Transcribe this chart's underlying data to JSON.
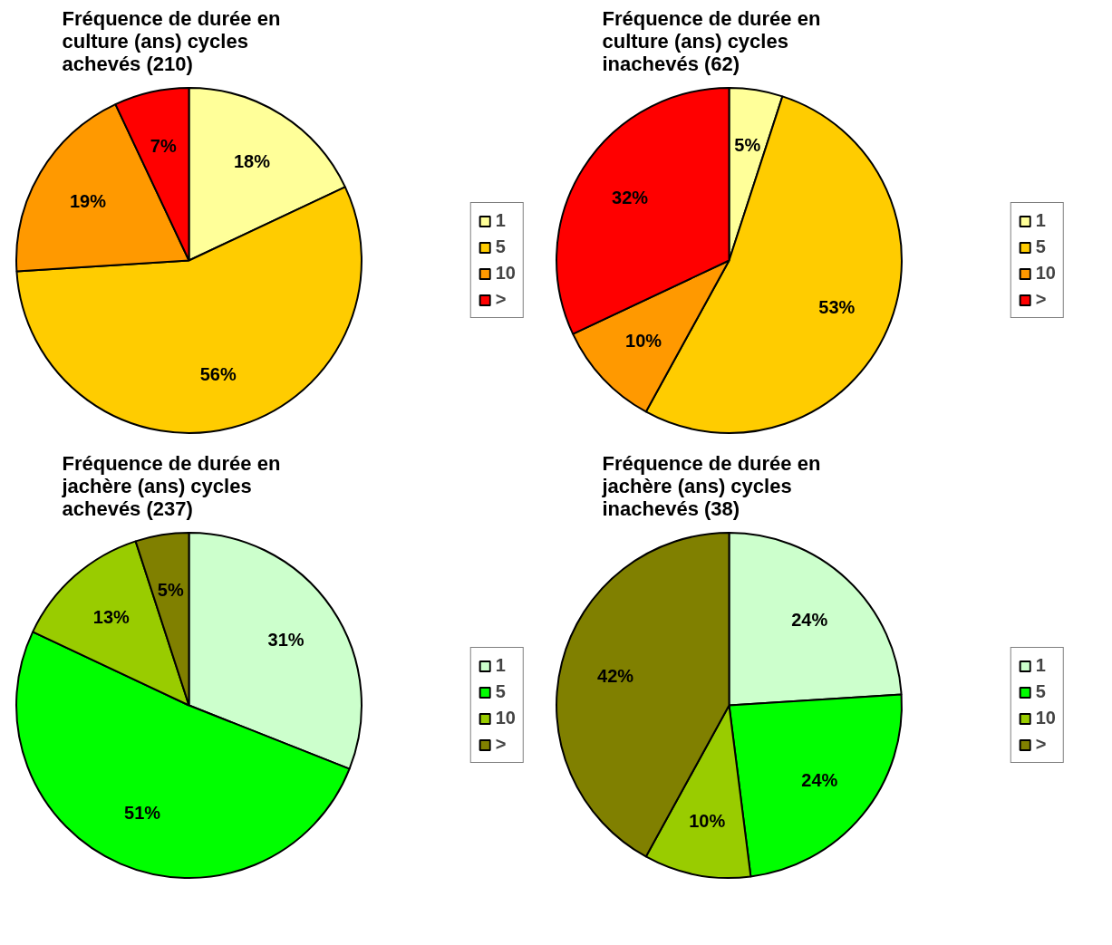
{
  "chart_data": [
    {
      "type": "pie",
      "title": "Fréquence de durée en culture (ans) cycles achevés (210)",
      "categories": [
        "1",
        "5",
        "10",
        ">"
      ],
      "values": [
        18,
        56,
        19,
        7
      ],
      "value_labels": [
        "18%",
        "56%",
        "19%",
        "7%"
      ],
      "colors": [
        "#ffff99",
        "#ffcc00",
        "#ff9900",
        "#ff0000"
      ],
      "legend": "right"
    },
    {
      "type": "pie",
      "title": "Fréquence de durée en culture (ans) cycles inachevés (62)",
      "categories": [
        "1",
        "5",
        "10",
        ">"
      ],
      "values": [
        5,
        53,
        10,
        32
      ],
      "value_labels": [
        "5%",
        "53%",
        "10%",
        "32%"
      ],
      "colors": [
        "#ffff99",
        "#ffcc00",
        "#ff9900",
        "#ff0000"
      ],
      "legend": "right"
    },
    {
      "type": "pie",
      "title": "Fréquence de durée en jachère (ans) cycles achevés (237)",
      "categories": [
        "1",
        "5",
        "10",
        ">"
      ],
      "values": [
        31,
        51,
        13,
        5
      ],
      "value_labels": [
        "31%",
        "51%",
        "13%",
        "5%"
      ],
      "colors": [
        "#ccffcc",
        "#00ff00",
        "#99cc00",
        "#808000"
      ],
      "legend": "right"
    },
    {
      "type": "pie",
      "title": "Fréquence de durée en jachère (ans) cycles inachevés (38)",
      "categories": [
        "1",
        "5",
        "10",
        ">"
      ],
      "values": [
        24,
        24,
        10,
        42
      ],
      "value_labels": [
        "24%",
        "24%",
        "10%",
        "42%"
      ],
      "colors": [
        "#ccffcc",
        "#00ff00",
        "#99cc00",
        "#808000"
      ],
      "legend": "right"
    }
  ]
}
